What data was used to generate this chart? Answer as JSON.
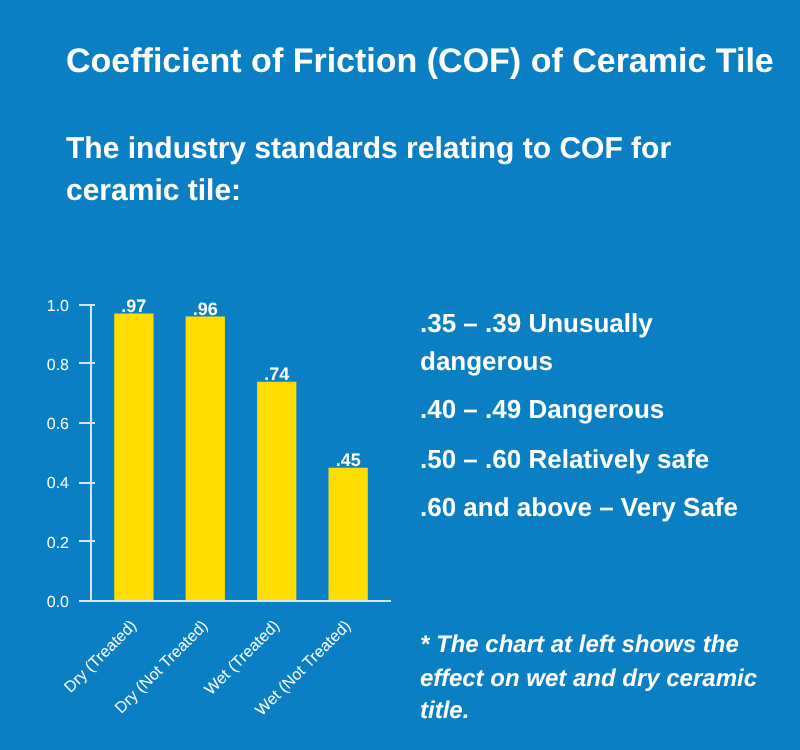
{
  "chart_data": {
    "type": "bar",
    "title": "Coefficient of Friction (COF) of Ceramic Tile",
    "subtitle": "The industry standards relating to COF for ceramic tile:",
    "categories": [
      "Dry (Treated)",
      "Dry (Not Treated)",
      "Wet (Treated)",
      "Wet (Not Treated)"
    ],
    "values": [
      0.97,
      0.96,
      0.74,
      0.45
    ],
    "value_labels": [
      ".97",
      ".96",
      ".74",
      ".45"
    ],
    "color": "#ffdd00",
    "ylim": [
      0,
      1
    ],
    "yticks": [
      {
        "value": 0,
        "label": "0.0"
      },
      {
        "value": 0.2,
        "label": "0.2"
      },
      {
        "value": 0.4,
        "label": "0.4"
      },
      {
        "value": 0.6,
        "label": "0.6"
      },
      {
        "value": 0.8,
        "label": "0.8"
      },
      {
        "value": 1,
        "label": "1.0"
      }
    ],
    "annotations": [
      ".35 – .39 Unusually dangerous",
      ".40 – .49 Dangerous",
      ".50 – .60 Relatively safe",
      ".60 and above – Very Safe",
      "* The chart at left shows the effect on wet and dry ceramic title."
    ]
  }
}
